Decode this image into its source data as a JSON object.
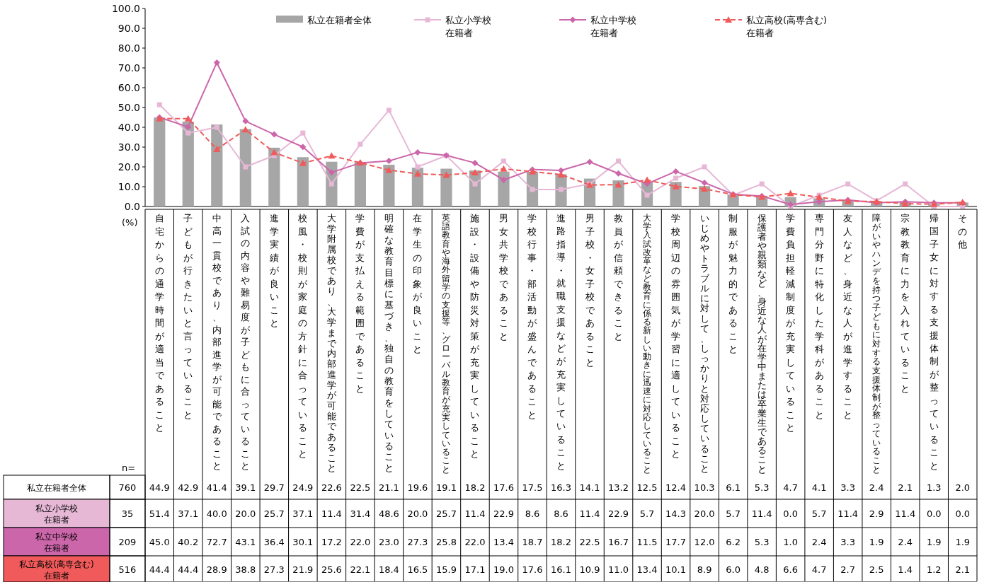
{
  "chart_data": {
    "type": "bar",
    "categories": [
      "自宅からの通学時間が適当であること",
      "子どもが行きたいと言っていること",
      "中高一貫校であり、内部進学が可能であること",
      "入試の内容や難易度が子どもに合っていること",
      "進学実績が良いこと",
      "校風・校則が家庭の方針に合っていること",
      "大学附属校であり、大学まで内部進学が可能であること",
      "学費が支払える範囲であること",
      "明確な教育目標に基づき、独自の教育をしていること",
      "在学生の印象が良いこと",
      "英語教育や海外留学の支援等、グローバル教育が充実していること",
      "施設・設備や防災対策が充実していること",
      "男女共学校であること",
      "学校行事・部活動が盛んであること",
      "進路指導・就職支援などが充実していること",
      "男子校・女子校であること",
      "教員が信頼できること",
      "大学入試改革など教育に係る新しい動きに迅速に対応していること",
      "学校周辺の雰囲気が学習に適していること",
      "いじめやトラブルに対して、しっかりと対応していること",
      "制服が魅力的であること",
      "保護者や親類など、身近な人が在学中または卒業生であること",
      "学費負担軽減制度が充実していること",
      "専門分野に特化した学科があること",
      "友人など、身近な人が進学すること",
      "障がいやハンデを持つ子どもに対する支援体制が整っていること",
      "宗教教育に力を入れていること",
      "帰国子女に対する支援体制が整っていること",
      "その他"
    ],
    "series": [
      {
        "name": "私立在籍者全体",
        "color": "#a6a6a6",
        "values": [
          44.9,
          42.9,
          41.4,
          39.1,
          29.7,
          24.9,
          22.6,
          22.5,
          21.1,
          19.6,
          19.1,
          18.2,
          17.6,
          17.5,
          16.3,
          14.1,
          13.2,
          12.5,
          12.4,
          10.3,
          6.1,
          5.3,
          4.7,
          4.1,
          3.3,
          2.4,
          2.1,
          1.3,
          2.0
        ],
        "value_labels": [
          "44.9",
          "42.9",
          "41.4",
          "39.1",
          "29.7",
          "24.9",
          "22.6",
          "22.5",
          "21.1",
          "19.6",
          "19.1",
          "18.2",
          "17.6",
          "17.5",
          "16.3",
          "14.1",
          "13.2",
          "12.5",
          "12.4",
          "10.3",
          "6.1",
          "5.3",
          "4.7",
          "4.1",
          "3.3",
          "2.4",
          "2.1",
          "1.3",
          "2.0"
        ]
      },
      {
        "name": "私立小学校在籍者",
        "type": "line",
        "color": "#e6b8d6",
        "marker": "square",
        "line_style": "solid",
        "values": [
          51.4,
          37.1,
          40.0,
          20.0,
          25.7,
          37.1,
          11.4,
          31.4,
          48.6,
          20.0,
          25.7,
          11.4,
          22.9,
          8.6,
          8.6,
          11.4,
          22.9,
          5.7,
          14.3,
          20.0,
          5.7,
          11.4,
          0.0,
          5.7,
          11.4,
          2.9,
          11.4,
          0.0,
          0.0
        ],
        "value_labels": [
          "51.4",
          "37.1",
          "40.0",
          "20.0",
          "25.7",
          "37.1",
          "11.4",
          "31.4",
          "48.6",
          "20.0",
          "25.7",
          "11.4",
          "22.9",
          "8.6",
          "8.6",
          "11.4",
          "22.9",
          "5.7",
          "14.3",
          "20.0",
          "5.7",
          "11.4",
          "0.0",
          "5.7",
          "11.4",
          "2.9",
          "11.4",
          "0.0",
          "0.0"
        ]
      },
      {
        "name": "私立中学校在籍者",
        "type": "line",
        "color": "#cc66aa",
        "marker": "diamond",
        "line_style": "solid",
        "values": [
          45.0,
          40.2,
          72.7,
          43.1,
          36.4,
          30.1,
          17.2,
          22.0,
          23.0,
          27.3,
          25.8,
          22.0,
          13.4,
          18.7,
          18.2,
          22.5,
          16.7,
          11.5,
          17.7,
          12.0,
          6.2,
          5.3,
          1.0,
          2.4,
          3.3,
          1.9,
          2.4,
          1.9,
          1.9
        ],
        "value_labels": [
          "45.0",
          "40.2",
          "72.7",
          "43.1",
          "36.4",
          "30.1",
          "17.2",
          "22.0",
          "23.0",
          "27.3",
          "25.8",
          "22.0",
          "13.4",
          "18.7",
          "18.2",
          "22.5",
          "16.7",
          "11.5",
          "17.7",
          "12.0",
          "6.2",
          "5.3",
          "1.0",
          "2.4",
          "3.3",
          "1.9",
          "2.4",
          "1.9",
          "1.9"
        ]
      },
      {
        "name": "私立高校(高専含む)在籍者",
        "type": "line",
        "color": "#f05a5a",
        "marker": "triangle",
        "line_style": "dashed",
        "values": [
          44.4,
          44.4,
          28.9,
          38.8,
          27.3,
          21.9,
          25.6,
          22.1,
          18.4,
          16.5,
          15.9,
          17.1,
          19.0,
          17.6,
          16.1,
          10.9,
          11.0,
          13.4,
          10.1,
          8.9,
          6.0,
          4.8,
          6.6,
          4.7,
          2.7,
          2.5,
          1.4,
          1.2,
          2.1
        ],
        "value_labels": [
          "44.4",
          "44.4",
          "28.9",
          "38.8",
          "27.3",
          "21.9",
          "25.6",
          "22.1",
          "18.4",
          "16.5",
          "15.9",
          "17.1",
          "19.0",
          "17.6",
          "16.1",
          "10.9",
          "11.0",
          "13.4",
          "10.1",
          "8.9",
          "6.0",
          "4.8",
          "6.6",
          "4.7",
          "2.7",
          "2.5",
          "1.4",
          "1.2",
          "2.1"
        ]
      }
    ],
    "ylim": [
      0,
      100
    ],
    "yticks": [
      {
        "value": 0,
        "label": "0.0"
      },
      {
        "value": 10,
        "label": "10.0"
      },
      {
        "value": 20,
        "label": "20.0"
      },
      {
        "value": 30,
        "label": "30.0"
      },
      {
        "value": 40,
        "label": "40.0"
      },
      {
        "value": 50,
        "label": "50.0"
      },
      {
        "value": 60,
        "label": "60.0"
      },
      {
        "value": 70,
        "label": "70.0"
      },
      {
        "value": 80,
        "label": "80.0"
      },
      {
        "value": 90,
        "label": "90.0"
      },
      {
        "value": 100,
        "label": "100.0"
      }
    ],
    "legend": "top",
    "annotations": [
      "(%)",
      "n=",
      "760",
      "35",
      "209",
      "516"
    ]
  }
}
